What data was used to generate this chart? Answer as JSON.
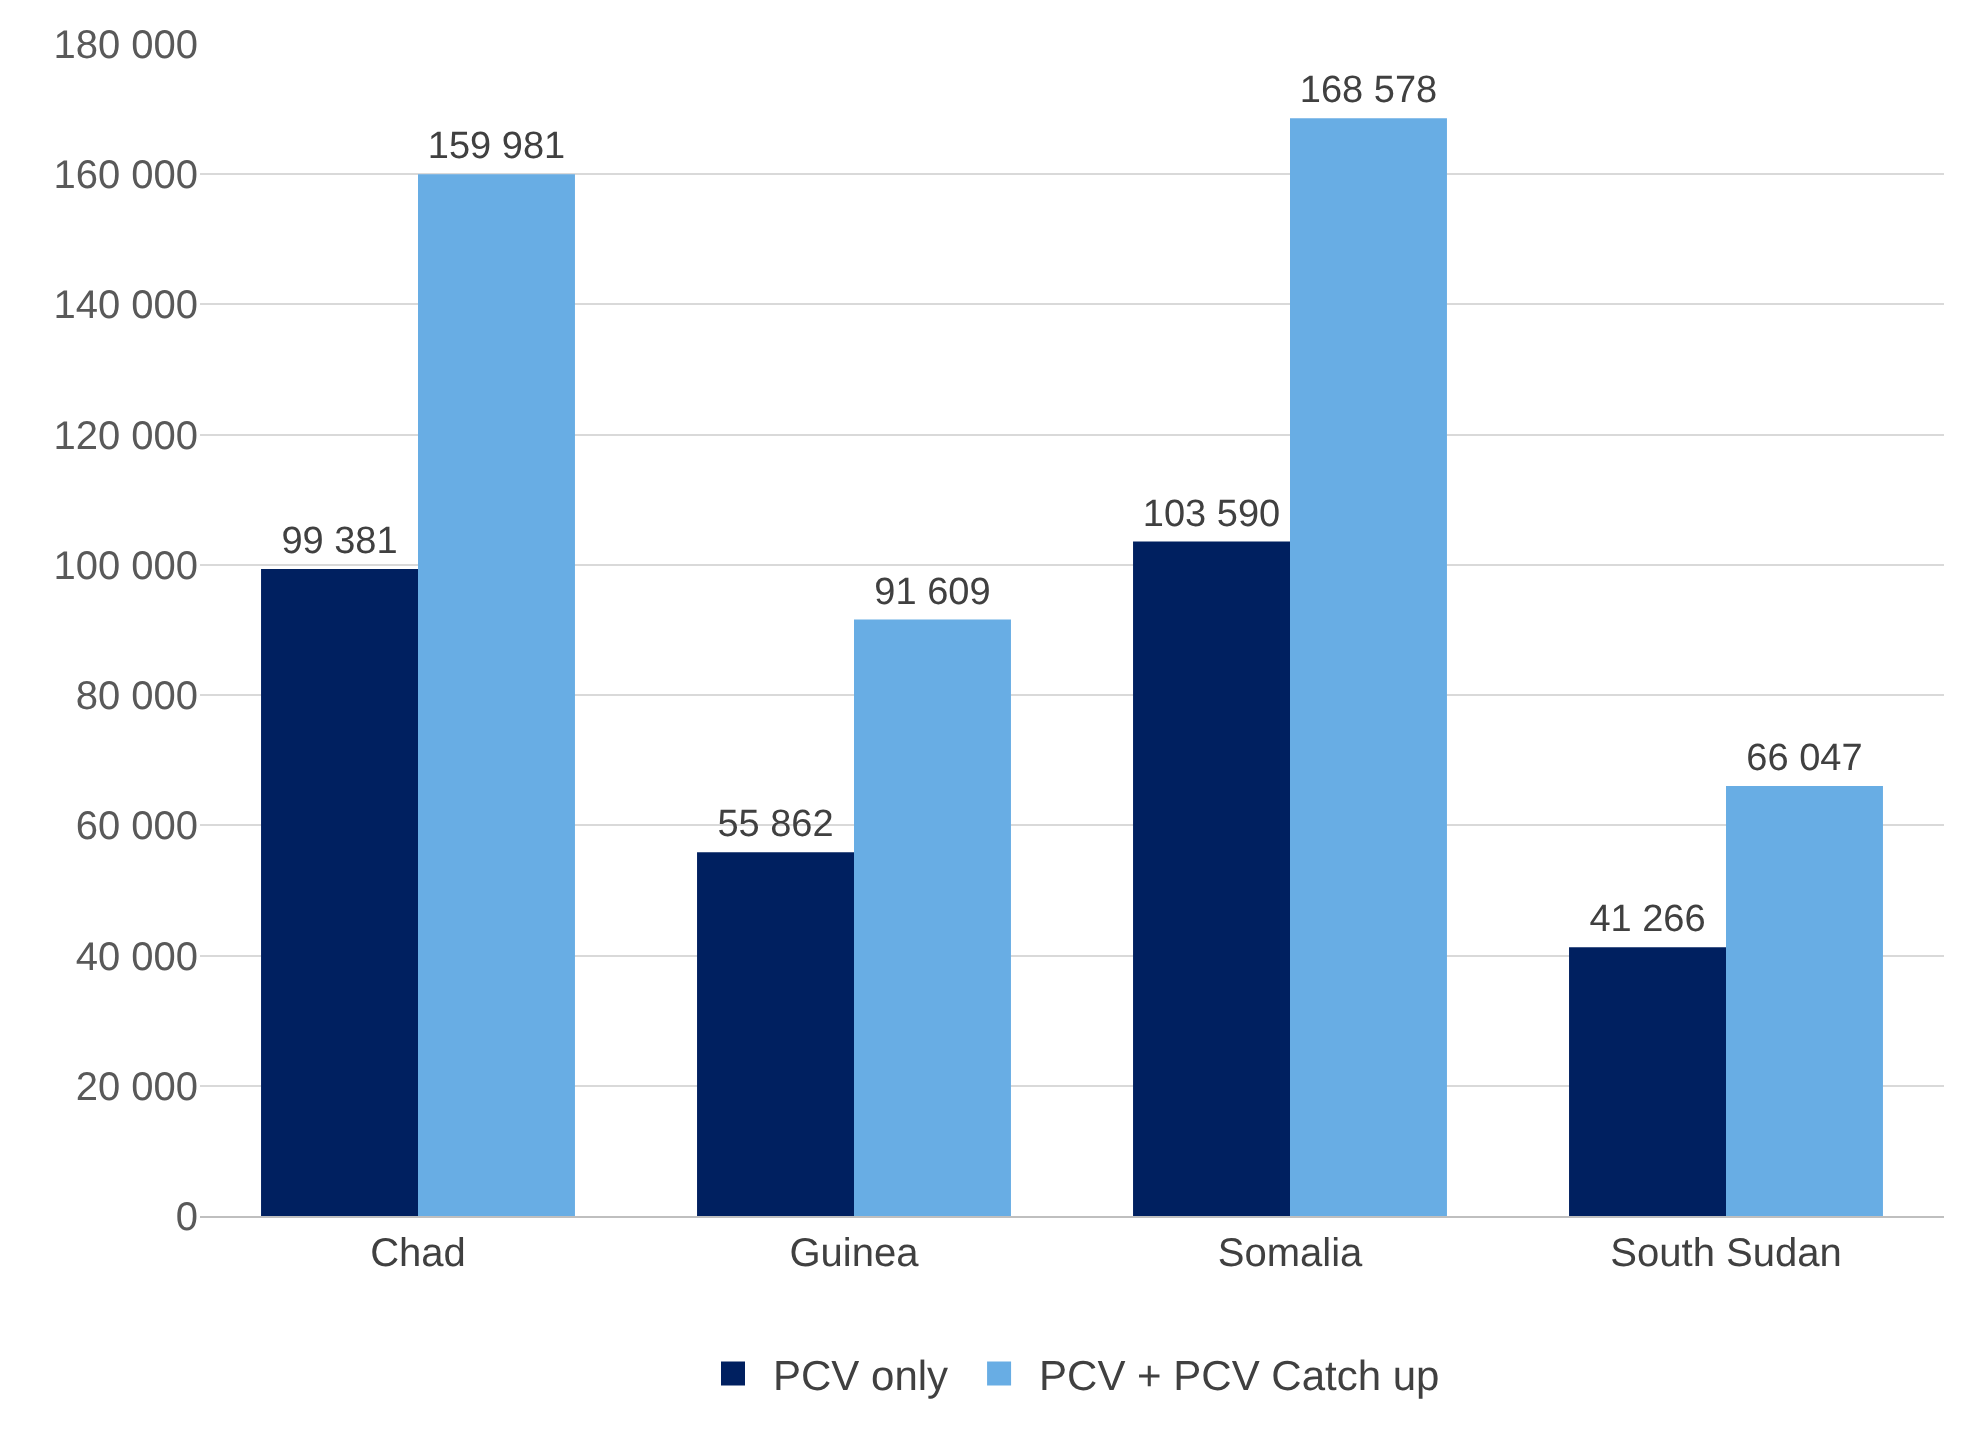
{
  "chart_data": {
    "type": "bar",
    "categories": [
      "Chad",
      "Guinea",
      "Somalia",
      "South Sudan"
    ],
    "series": [
      {
        "name": "PCV only",
        "color": "#002060",
        "values": [
          99381,
          55862,
          103590,
          41266
        ],
        "value_labels": [
          "99 381",
          "55 862",
          "103 590",
          "41 266"
        ]
      },
      {
        "name": "PCV + PCV Catch up",
        "color": "#68ade4",
        "values": [
          159981,
          91609,
          168578,
          66047
        ],
        "value_labels": [
          "159 981",
          "91 609",
          "168 578",
          "66 047"
        ]
      }
    ],
    "ylim": [
      0,
      180000
    ],
    "yticks": [
      0,
      {
        "value": 20000,
        "label": "20 000"
      },
      {
        "value": 40000,
        "label": "40 000"
      },
      {
        "value": 60000,
        "label": "60 000"
      },
      {
        "value": 80000,
        "label": "80 000"
      },
      {
        "value": 100000,
        "label": "100 000"
      },
      {
        "value": 120000,
        "label": "120 000"
      },
      {
        "value": 140000,
        "label": "140 000"
      },
      {
        "value": 160000,
        "label": "160 000"
      },
      {
        "value": 180000,
        "label": "180 000"
      }
    ],
    "grid": "y",
    "legend": "bottom"
  }
}
